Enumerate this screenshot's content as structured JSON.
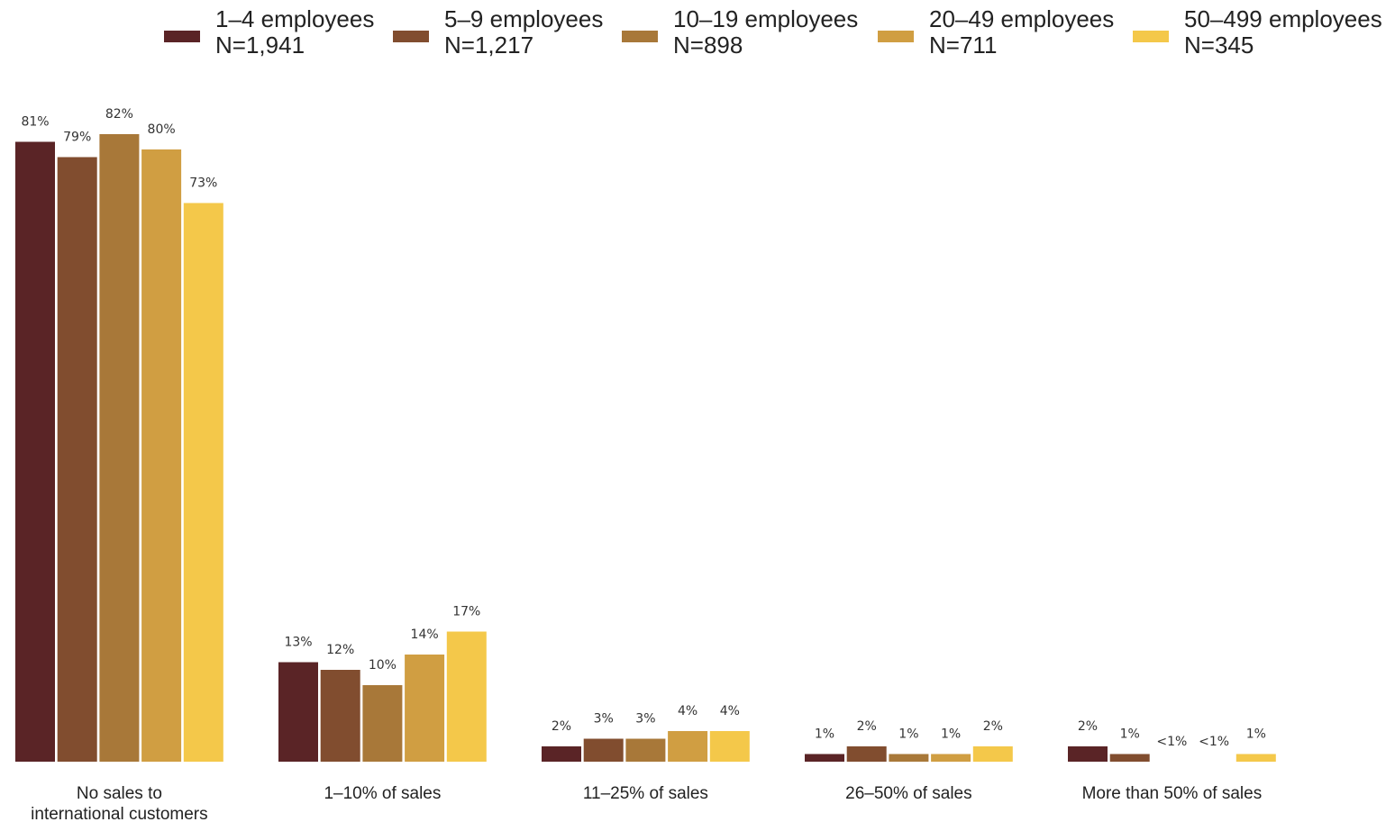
{
  "chart_data": {
    "type": "bar",
    "categories": [
      [
        "No sales to",
        "international customers"
      ],
      [
        "1–10% of sales"
      ],
      [
        "11–25% of sales"
      ],
      [
        "26–50%  of sales"
      ],
      [
        "More than 50% of sales"
      ]
    ],
    "series": [
      {
        "name": "1–4 employees",
        "n_label": "N=1,941",
        "color": "#5a2426",
        "values": [
          81,
          13,
          2,
          1,
          2
        ],
        "labels": [
          "81%",
          "13%",
          "2%",
          "1%",
          "2%"
        ]
      },
      {
        "name": "5–9 employees",
        "n_label": "N=1,217",
        "color": "#814d2f",
        "values": [
          79,
          12,
          3,
          2,
          1
        ],
        "labels": [
          "79%",
          "12%",
          "3%",
          "2%",
          "1%"
        ]
      },
      {
        "name": "10–19 employees",
        "n_label": "N=898",
        "color": "#a87839",
        "values": [
          82,
          10,
          3,
          1,
          0
        ],
        "labels": [
          "82%",
          "10%",
          "3%",
          "1%",
          "<1%"
        ]
      },
      {
        "name": "20–49 employees",
        "n_label": "N=711",
        "color": "#d09e42",
        "values": [
          80,
          14,
          4,
          1,
          0
        ],
        "labels": [
          "80%",
          "14%",
          "4%",
          "1%",
          "<1%"
        ]
      },
      {
        "name": "50–499 employees",
        "n_label": "N=345",
        "color": "#f4c84a",
        "values": [
          73,
          17,
          4,
          2,
          1
        ],
        "labels": [
          "73%",
          "17%",
          "4%",
          "2%",
          "1%"
        ]
      }
    ],
    "ylim": [
      0,
      100
    ],
    "grid": false,
    "legend_position": "top"
  }
}
